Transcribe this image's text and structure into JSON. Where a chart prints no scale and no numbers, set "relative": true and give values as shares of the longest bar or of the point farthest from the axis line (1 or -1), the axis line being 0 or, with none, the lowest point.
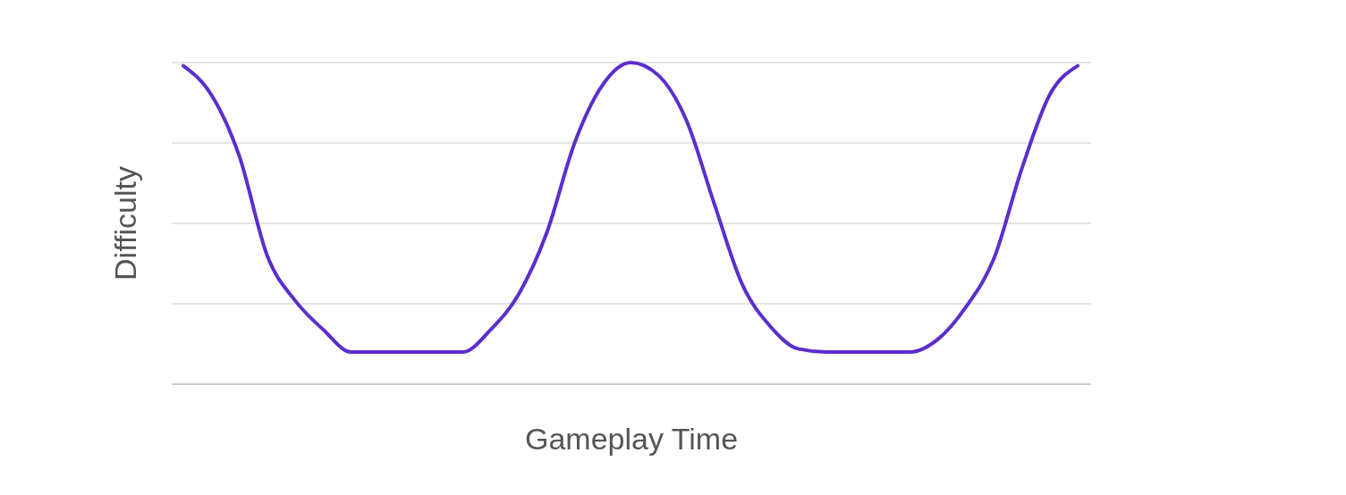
{
  "chart_data": {
    "type": "line",
    "relative": true,
    "xlabel": "Gameplay Time",
    "ylabel": "Difficulty",
    "grid": "y",
    "categories": [
      null,
      null,
      null,
      null,
      null,
      null,
      null,
      null,
      null,
      null,
      null,
      null,
      null,
      null,
      null,
      null,
      null,
      null,
      null,
      null,
      null,
      null,
      null,
      null,
      null,
      null,
      null,
      null,
      null,
      null,
      null,
      null,
      null
    ],
    "series": [
      {
        "color": "#5b2ecc",
        "values": [
          0.99,
          0.9,
          0.71,
          0.4,
          0.26,
          0.17,
          0.1,
          0.1,
          0.1,
          0.1,
          0.1,
          0.17,
          0.28,
          0.47,
          0.75,
          0.93,
          1,
          0.96,
          0.82,
          0.56,
          0.31,
          0.18,
          0.11,
          0.1,
          0.1,
          0.1,
          0.1,
          0.14,
          0.24,
          0.39,
          0.67,
          0.9,
          0.99
        ]
      }
    ]
  }
}
